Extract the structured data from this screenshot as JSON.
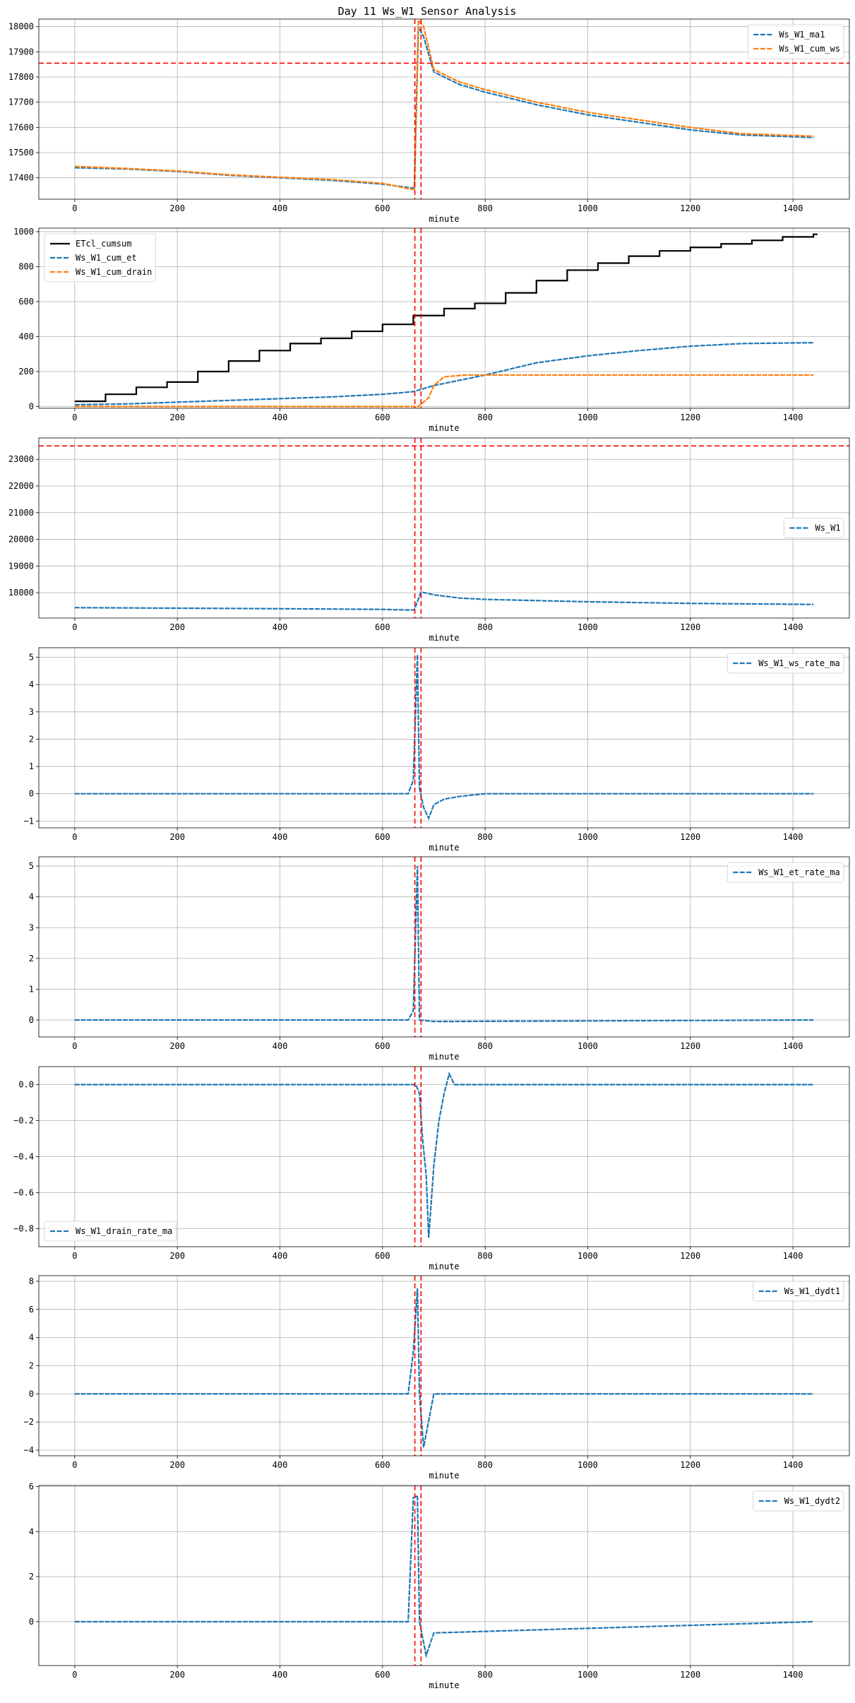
{
  "figure": {
    "title": "Day 11 Ws_W1 Sensor Analysis"
  },
  "colors": {
    "blue": "#1f77b4",
    "orange": "#ff7f0e",
    "black": "#000000",
    "red": "#ff0000",
    "grid": "#b0b0b0"
  },
  "chart_data": [
    {
      "type": "line",
      "xlabel": "minute",
      "xlim": [
        -70,
        1510
      ],
      "ylim": [
        17315,
        18030
      ],
      "xticks": [
        0,
        200,
        400,
        600,
        800,
        1000,
        1200,
        1400
      ],
      "yticks": [
        17400,
        17500,
        17600,
        17700,
        17800,
        17900,
        18000
      ],
      "legend": "top-right",
      "hlines": [
        17855
      ],
      "vlines": [
        663,
        675
      ],
      "series": [
        {
          "name": "Ws_W1_ma1",
          "color": "blue",
          "style": "dashed",
          "x": [
            0,
            100,
            200,
            300,
            400,
            500,
            600,
            655,
            662,
            670,
            680,
            700,
            750,
            800,
            900,
            1000,
            1100,
            1200,
            1300,
            1440
          ],
          "y": [
            17440,
            17435,
            17425,
            17410,
            17400,
            17390,
            17375,
            17360,
            17360,
            18000,
            17960,
            17820,
            17770,
            17740,
            17690,
            17650,
            17620,
            17590,
            17570,
            17560
          ]
        },
        {
          "name": "Ws_W1_cum_ws",
          "color": "orange",
          "style": "dashed",
          "x": [
            0,
            100,
            200,
            300,
            400,
            500,
            600,
            655,
            662,
            670,
            680,
            700,
            750,
            800,
            900,
            1000,
            1100,
            1200,
            1300,
            1440
          ],
          "y": [
            17445,
            17437,
            17427,
            17412,
            17402,
            17393,
            17378,
            17355,
            17355,
            18025,
            18000,
            17830,
            17780,
            17750,
            17700,
            17660,
            17630,
            17600,
            17575,
            17565
          ]
        }
      ]
    },
    {
      "type": "line",
      "xlabel": "minute",
      "xlim": [
        -70,
        1510
      ],
      "ylim": [
        -10,
        1020
      ],
      "xticks": [
        0,
        200,
        400,
        600,
        800,
        1000,
        1200,
        1400
      ],
      "yticks": [
        0,
        200,
        400,
        600,
        800,
        1000
      ],
      "legend": "top-left",
      "hlines": [],
      "vlines": [
        663,
        675
      ],
      "series": [
        {
          "name": "ETcl_cumsum",
          "color": "black",
          "style": "step",
          "x": [
            0,
            60,
            120,
            180,
            240,
            300,
            360,
            420,
            480,
            540,
            600,
            660,
            720,
            780,
            840,
            900,
            960,
            1020,
            1080,
            1140,
            1200,
            1260,
            1320,
            1380,
            1440
          ],
          "y": [
            30,
            70,
            110,
            140,
            200,
            260,
            320,
            360,
            390,
            430,
            470,
            520,
            560,
            590,
            650,
            720,
            780,
            820,
            860,
            890,
            910,
            930,
            950,
            970,
            985
          ]
        },
        {
          "name": "Ws_W1_cum_et",
          "color": "blue",
          "style": "dashed",
          "x": [
            0,
            100,
            200,
            300,
            400,
            500,
            600,
            660,
            700,
            750,
            800,
            900,
            1000,
            1100,
            1200,
            1300,
            1440
          ],
          "y": [
            10,
            15,
            25,
            35,
            45,
            55,
            70,
            85,
            120,
            150,
            180,
            250,
            290,
            320,
            345,
            360,
            365
          ]
        },
        {
          "name": "Ws_W1_cum_drain",
          "color": "orange",
          "style": "dashed",
          "x": [
            0,
            670,
            690,
            700,
            720,
            760,
            800,
            1440
          ],
          "y": [
            0,
            0,
            50,
            120,
            170,
            180,
            180,
            180
          ]
        }
      ]
    },
    {
      "type": "line",
      "xlabel": "minute",
      "xlim": [
        -70,
        1510
      ],
      "ylim": [
        17050,
        23800
      ],
      "xticks": [
        0,
        200,
        400,
        600,
        800,
        1000,
        1200,
        1400
      ],
      "yticks": [
        18000,
        19000,
        20000,
        21000,
        22000,
        23000
      ],
      "legend": "center-right",
      "hlines": [
        23500
      ],
      "vlines": [
        663,
        675
      ],
      "series": [
        {
          "name": "Ws_W1",
          "color": "blue",
          "style": "dashed",
          "x": [
            0,
            200,
            400,
            600,
            655,
            662,
            675,
            700,
            750,
            800,
            1000,
            1200,
            1440
          ],
          "y": [
            17440,
            17420,
            17400,
            17375,
            17350,
            17360,
            18030,
            17920,
            17800,
            17750,
            17660,
            17600,
            17560
          ]
        }
      ]
    },
    {
      "type": "line",
      "xlabel": "minute",
      "xlim": [
        -70,
        1510
      ],
      "ylim": [
        -1.25,
        5.35
      ],
      "xticks": [
        0,
        200,
        400,
        600,
        800,
        1000,
        1200,
        1400
      ],
      "yticks": [
        -1,
        0,
        1,
        2,
        3,
        4,
        5
      ],
      "legend": "top-right",
      "hlines": [],
      "vlines": [
        663,
        675
      ],
      "series": [
        {
          "name": "Ws_W1_ws_rate_ma",
          "color": "blue",
          "style": "dashed",
          "x": [
            0,
            650,
            660,
            668,
            672,
            680,
            690,
            700,
            720,
            750,
            800,
            1440
          ],
          "y": [
            0,
            0,
            0.5,
            5.1,
            0.2,
            -0.5,
            -0.9,
            -0.4,
            -0.2,
            -0.1,
            0,
            0
          ]
        }
      ]
    },
    {
      "type": "line",
      "xlabel": "minute",
      "xlim": [
        -70,
        1510
      ],
      "ylim": [
        -0.55,
        5.3
      ],
      "xticks": [
        0,
        200,
        400,
        600,
        800,
        1000,
        1200,
        1400
      ],
      "yticks": [
        0,
        1,
        2,
        3,
        4,
        5
      ],
      "legend": "top-right",
      "hlines": [],
      "vlines": [
        663,
        675
      ],
      "series": [
        {
          "name": "Ws_W1_et_rate_ma",
          "color": "blue",
          "style": "dashed",
          "x": [
            0,
            650,
            660,
            668,
            672,
            700,
            1440
          ],
          "y": [
            0,
            0,
            0.3,
            5.0,
            0,
            -0.05,
            0
          ]
        }
      ]
    },
    {
      "type": "line",
      "xlabel": "minute",
      "xlim": [
        -70,
        1510
      ],
      "ylim": [
        -0.9,
        0.1
      ],
      "xticks": [
        0,
        200,
        400,
        600,
        800,
        1000,
        1200,
        1400
      ],
      "yticks": [
        -0.8,
        -0.6,
        -0.4,
        -0.2,
        0.0
      ],
      "legend": "bottom-left",
      "hlines": [],
      "vlines": [
        663,
        675
      ],
      "series": [
        {
          "name": "Ws_W1_drain_rate_ma",
          "color": "blue",
          "style": "dashed",
          "x": [
            0,
            665,
            672,
            678,
            685,
            690,
            700,
            710,
            720,
            730,
            740,
            1440
          ],
          "y": [
            0,
            0,
            -0.05,
            -0.3,
            -0.5,
            -0.85,
            -0.45,
            -0.2,
            -0.05,
            0.06,
            0,
            0
          ]
        }
      ]
    },
    {
      "type": "line",
      "xlabel": "minute",
      "xlim": [
        -70,
        1510
      ],
      "ylim": [
        -4.4,
        8.4
      ],
      "xticks": [
        0,
        200,
        400,
        600,
        800,
        1000,
        1200,
        1400
      ],
      "yticks": [
        -4,
        -2,
        0,
        2,
        4,
        6,
        8
      ],
      "legend": "top-right",
      "hlines": [],
      "vlines": [
        663,
        675
      ],
      "series": [
        {
          "name": "Ws_W1_dydt1",
          "color": "blue",
          "style": "dashed",
          "x": [
            0,
            650,
            660,
            668,
            672,
            680,
            700,
            1440
          ],
          "y": [
            0,
            0,
            3,
            7.5,
            0,
            -3.8,
            0,
            0
          ]
        }
      ]
    },
    {
      "type": "line",
      "xlabel": "minute",
      "xlim": [
        -70,
        1510
      ],
      "ylim": [
        -1.95,
        6.05
      ],
      "xticks": [
        0,
        200,
        400,
        600,
        800,
        1000,
        1200,
        1400
      ],
      "yticks": [
        0,
        2,
        4,
        6
      ],
      "legend": "top-right",
      "hlines": [],
      "vlines": [
        663,
        675
      ],
      "series": [
        {
          "name": "Ws_W1_dydt2",
          "color": "blue",
          "style": "dashed",
          "x": [
            0,
            650,
            660,
            668,
            672,
            685,
            700,
            1440
          ],
          "y": [
            0,
            0,
            5.5,
            5.6,
            0,
            -1.5,
            -0.5,
            0
          ]
        }
      ]
    }
  ]
}
